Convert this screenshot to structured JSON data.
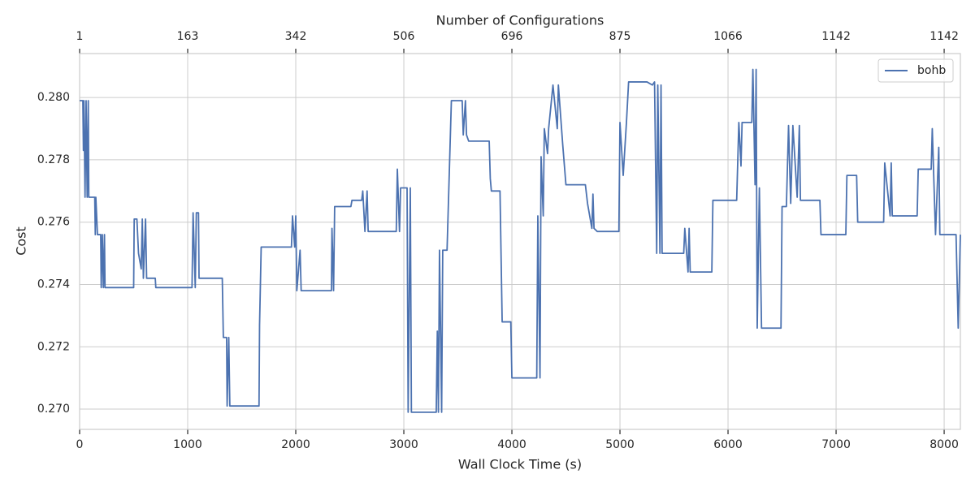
{
  "chart_data": {
    "type": "line",
    "xlabel": "Wall Clock Time (s)",
    "ylabel": "Cost",
    "x2label": "Number of Configurations",
    "xlim": [
      0,
      8150
    ],
    "ylim": [
      0.26935,
      0.28141
    ],
    "xticks": [
      0,
      1000,
      2000,
      3000,
      4000,
      5000,
      6000,
      7000,
      8000
    ],
    "x2ticks": [
      {
        "value": 0,
        "label": "1"
      },
      {
        "value": 1000,
        "label": "163"
      },
      {
        "value": 2000,
        "label": "342"
      },
      {
        "value": 3000,
        "label": "506"
      },
      {
        "value": 4000,
        "label": "696"
      },
      {
        "value": 5000,
        "label": "875"
      },
      {
        "value": 6000,
        "label": "1066"
      },
      {
        "value": 7000,
        "label": "1142"
      },
      {
        "value": 8000,
        "label": "1142"
      }
    ],
    "yticks": [
      {
        "value": 0.27,
        "label": "0.270"
      },
      0.272,
      0.274,
      0.276,
      0.278,
      {
        "value": 0.28,
        "label": "0.280"
      }
    ],
    "grid": true,
    "legend": "upper right",
    "x": [
      0,
      30,
      35,
      40,
      50,
      60,
      70,
      80,
      85,
      140,
      145,
      150,
      165,
      195,
      200,
      210,
      220,
      230,
      235,
      500,
      505,
      530,
      545,
      570,
      580,
      590,
      610,
      620,
      700,
      705,
      1040,
      1050,
      1070,
      1080,
      1100,
      1105,
      1320,
      1330,
      1360,
      1365,
      1380,
      1390,
      1660,
      1665,
      1680,
      1960,
      1970,
      1990,
      2000,
      2010,
      2040,
      2050,
      2330,
      2335,
      2350,
      2360,
      2510,
      2520,
      2610,
      2620,
      2640,
      2660,
      2670,
      2930,
      2940,
      2960,
      2970,
      3030,
      3040,
      3060,
      3070,
      3300,
      3310,
      3320,
      3330,
      3350,
      3360,
      3400,
      3440,
      3540,
      3550,
      3570,
      3580,
      3600,
      3790,
      3800,
      3810,
      3890,
      3910,
      3990,
      4000,
      4230,
      4240,
      4260,
      4270,
      4290,
      4300,
      4330,
      4340,
      4380,
      4420,
      4430,
      4470,
      4500,
      4680,
      4700,
      4740,
      4750,
      4760,
      4790,
      4990,
      5000,
      5030,
      5060,
      5080,
      5250,
      5300,
      5320,
      5340,
      5350,
      5370,
      5380,
      5390,
      5590,
      5600,
      5630,
      5640,
      5650,
      5850,
      5860,
      6080,
      6100,
      6120,
      6130,
      6220,
      6230,
      6250,
      6260,
      6270,
      6290,
      6310,
      6490,
      6500,
      6540,
      6560,
      6580,
      6600,
      6640,
      6660,
      6670,
      6850,
      6860,
      7090,
      7100,
      7190,
      7200,
      7440,
      7450,
      7500,
      7510,
      7520,
      7750,
      7760,
      7880,
      7890,
      7920,
      7950,
      7960,
      8110,
      8130,
      8150
    ],
    "series": [
      {
        "name": "bohb",
        "color": "#4c72b0",
        "values": [
          0.2799,
          0.2799,
          0.2783,
          0.2799,
          0.2768,
          0.2799,
          0.2768,
          0.2799,
          0.2768,
          0.2768,
          0.2756,
          0.2768,
          0.2756,
          0.2756,
          0.2739,
          0.2756,
          0.2739,
          0.2756,
          0.2739,
          0.2739,
          0.2761,
          0.2761,
          0.275,
          0.2745,
          0.2761,
          0.2742,
          0.2761,
          0.2742,
          0.2742,
          0.2739,
          0.2739,
          0.2763,
          0.2739,
          0.2763,
          0.2763,
          0.2742,
          0.2742,
          0.2723,
          0.2723,
          0.2701,
          0.2723,
          0.2701,
          0.2701,
          0.2727,
          0.2752,
          0.2752,
          0.2762,
          0.2752,
          0.2762,
          0.2738,
          0.2751,
          0.2738,
          0.2738,
          0.2758,
          0.2738,
          0.2765,
          0.2765,
          0.2767,
          0.2767,
          0.277,
          0.2757,
          0.277,
          0.2757,
          0.2757,
          0.2777,
          0.2757,
          0.2771,
          0.2771,
          0.2699,
          0.2771,
          0.2699,
          0.2699,
          0.2725,
          0.2699,
          0.2751,
          0.2699,
          0.2751,
          0.2751,
          0.2799,
          0.2799,
          0.2788,
          0.2799,
          0.2788,
          0.2786,
          0.2786,
          0.2774,
          0.277,
          0.277,
          0.2728,
          0.2728,
          0.271,
          0.271,
          0.2762,
          0.271,
          0.2781,
          0.2762,
          0.279,
          0.2782,
          0.279,
          0.2804,
          0.279,
          0.2804,
          0.2785,
          0.2772,
          0.2772,
          0.2766,
          0.2758,
          0.2769,
          0.2758,
          0.2757,
          0.2757,
          0.2792,
          0.2775,
          0.2792,
          0.2805,
          0.2805,
          0.2804,
          0.2805,
          0.275,
          0.2804,
          0.275,
          0.2804,
          0.275,
          0.275,
          0.2758,
          0.2744,
          0.2758,
          0.2744,
          0.2744,
          0.2767,
          0.2767,
          0.2792,
          0.2778,
          0.2792,
          0.2792,
          0.2809,
          0.2772,
          0.2809,
          0.2726,
          0.2771,
          0.2726,
          0.2726,
          0.2765,
          0.2765,
          0.2791,
          0.2766,
          0.2791,
          0.2768,
          0.2791,
          0.2767,
          0.2767,
          0.2756,
          0.2756,
          0.2775,
          0.2775,
          0.276,
          0.276,
          0.2779,
          0.2762,
          0.2779,
          0.2762,
          0.2762,
          0.2777,
          0.2777,
          0.279,
          0.2756,
          0.2784,
          0.2756,
          0.2756,
          0.2726,
          0.2756
        ]
      }
    ]
  }
}
